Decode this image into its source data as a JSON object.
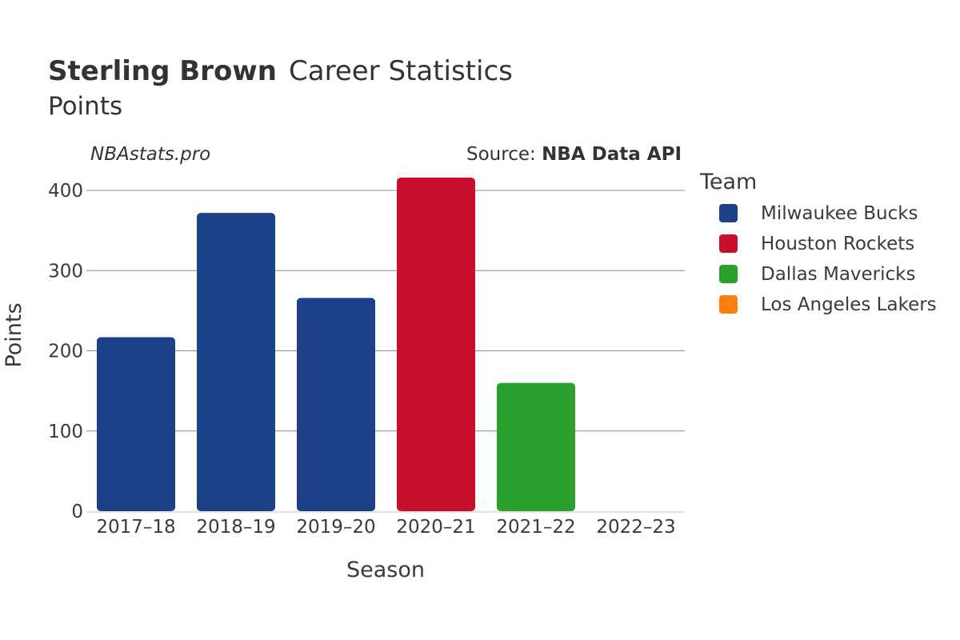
{
  "title": {
    "player": "Sterling Brown",
    "rest": "Career Statistics",
    "subtitle": "Points"
  },
  "watermark": "NBAstats.pro",
  "source": {
    "prefix": "Source: ",
    "name": "NBA Data API"
  },
  "chart_data": {
    "type": "bar",
    "xlabel": "Season",
    "ylabel": "Points",
    "ylim": [
      0,
      420
    ],
    "yticks": [
      0,
      100,
      200,
      300,
      400
    ],
    "grid": true,
    "legend_title": "Team",
    "legend_placement": "right",
    "categories": [
      "2017–18",
      "2018–19",
      "2019–20",
      "2020–21",
      "2021–22",
      "2022–23"
    ],
    "bars": [
      {
        "season": "2017–18",
        "team": "Milwaukee Bucks",
        "value": 217
      },
      {
        "season": "2018–19",
        "team": "Milwaukee Bucks",
        "value": 372
      },
      {
        "season": "2019–20",
        "team": "Milwaukee Bucks",
        "value": 266
      },
      {
        "season": "2020–21",
        "team": "Houston Rockets",
        "value": 416
      },
      {
        "season": "2021–22",
        "team": "Dallas Mavericks",
        "value": 160
      },
      {
        "season": "2022–23",
        "team": "Los Angeles Lakers",
        "value": 0
      }
    ],
    "teams": [
      {
        "name": "Milwaukee Bucks",
        "color": "#1c4189"
      },
      {
        "name": "Houston Rockets",
        "color": "#c8102e"
      },
      {
        "name": "Dallas Mavericks",
        "color": "#2ca02c"
      },
      {
        "name": "Los Angeles Lakers",
        "color": "#ff7f0e"
      }
    ]
  }
}
